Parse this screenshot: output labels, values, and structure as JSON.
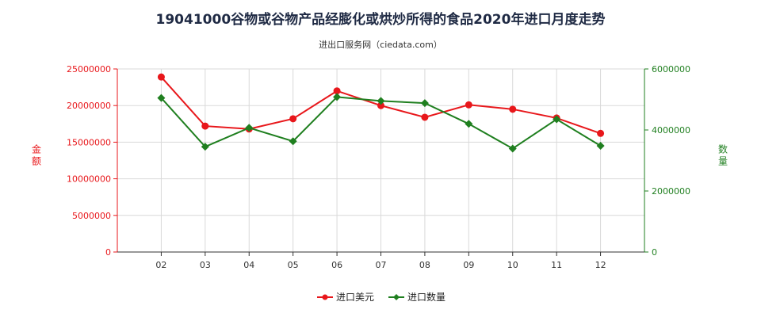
{
  "page": {
    "title": "19041000谷物或谷物产品经膨化或烘炒所得的食品2020年进口月度走势",
    "subtitle": "进出口服务网（ciedata.com）"
  },
  "chart_data": {
    "type": "line",
    "categories": [
      "02",
      "03",
      "04",
      "05",
      "06",
      "07",
      "08",
      "09",
      "10",
      "11",
      "12"
    ],
    "ylabel_left": "金额",
    "ylabel_right": "数量",
    "ylim_left": [
      0,
      25000000
    ],
    "ylim_right": [
      0,
      6000000
    ],
    "yticks_left": [
      "0",
      "5000000",
      "10000000",
      "15000000",
      "20000000",
      "25000000"
    ],
    "yticks_right": [
      "0",
      "2000000",
      "4000000",
      "6000000"
    ],
    "grid": true,
    "legend_position": "bottom",
    "series": [
      {
        "name": "进口美元",
        "axis": "left",
        "color": "#e8171b",
        "marker": "circle",
        "values": [
          23900000,
          17200000,
          16800000,
          18200000,
          22000000,
          20000000,
          18400000,
          20100000,
          19500000,
          18300000,
          16200000
        ]
      },
      {
        "name": "进口数量",
        "axis": "right",
        "color": "#1f7f1f",
        "marker": "diamond",
        "values": [
          5050000,
          3450000,
          4070000,
          3630000,
          5080000,
          4950000,
          4880000,
          4200000,
          3390000,
          4350000,
          3480000
        ]
      }
    ],
    "axis_colors": {
      "left": "#e8171b",
      "right": "#1f7f1f"
    },
    "grid_color": "#d9d9d9"
  }
}
